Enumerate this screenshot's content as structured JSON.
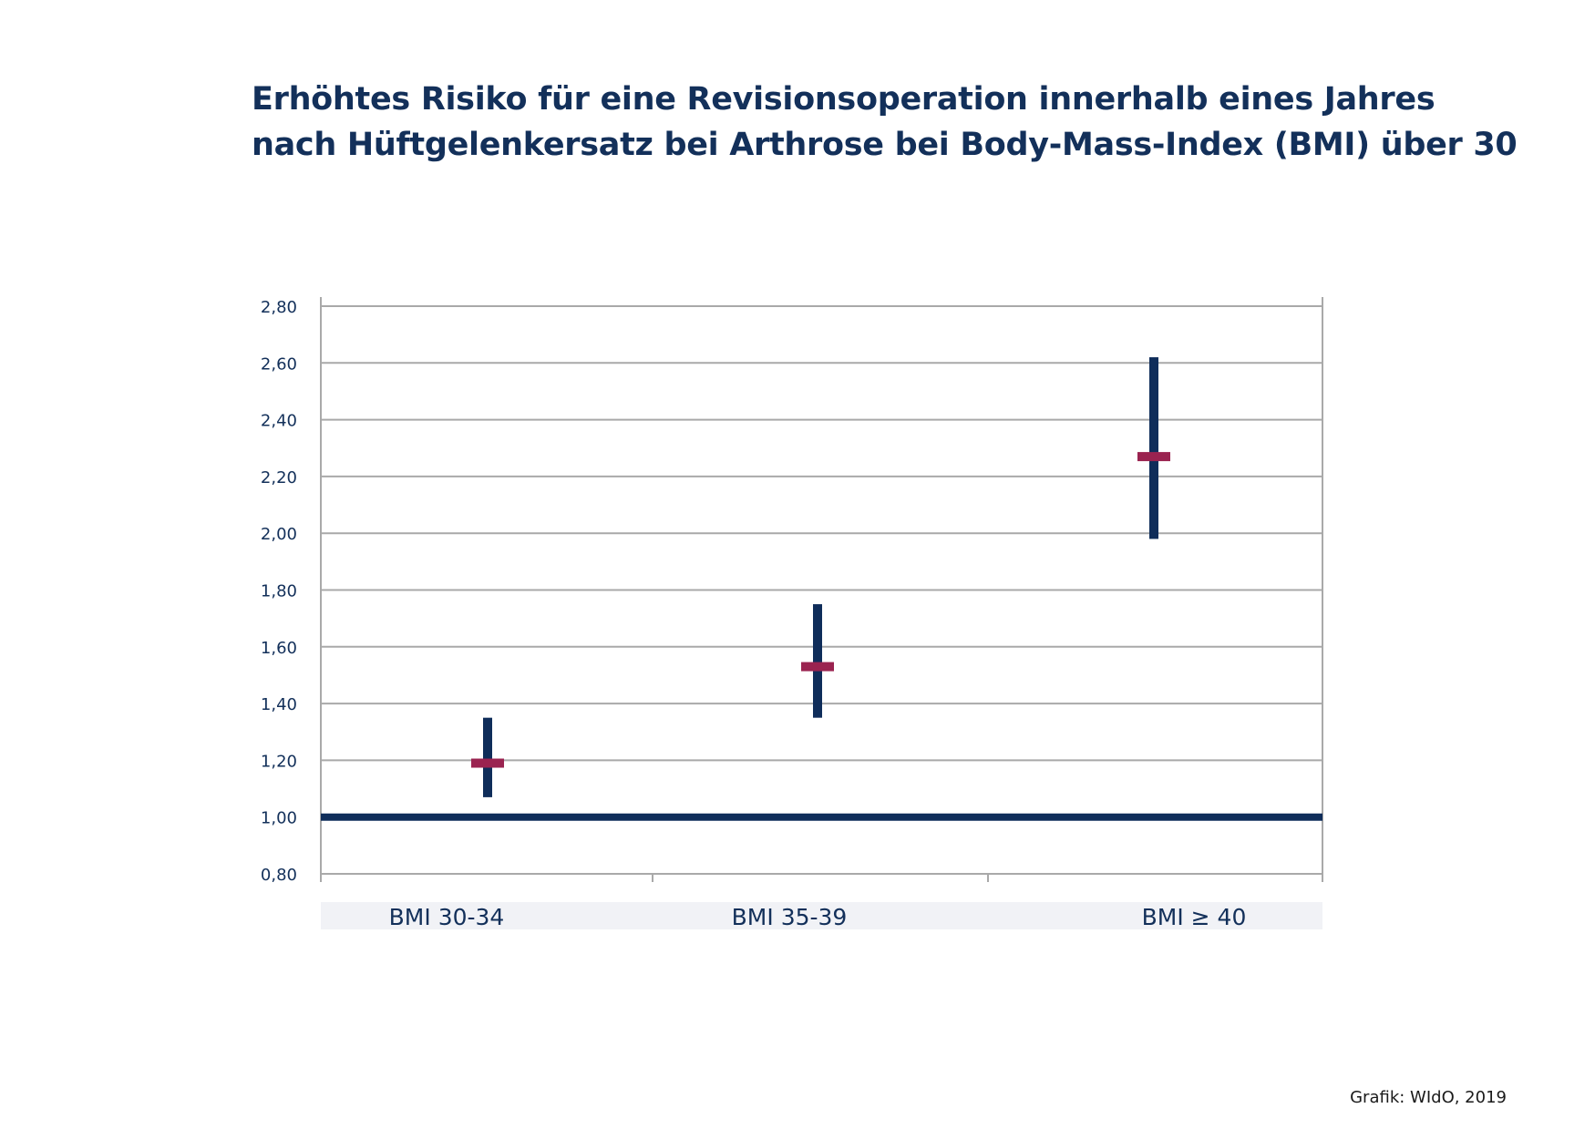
{
  "chart_data": {
    "type": "errorbar",
    "title_lines": [
      "Erhöhtes Risiko für eine Revisionsoperation innerhalb eines Jahres",
      "nach Hüftgelenkersatz bei Arthrose bei Body-Mass-Index (BMI) über 30"
    ],
    "categories": [
      "BMI 30-34",
      "BMI 35-39",
      "BMI ≥ 40"
    ],
    "estimates": [
      1.19,
      1.53,
      2.27
    ],
    "ci_lower": [
      1.07,
      1.35,
      1.98
    ],
    "ci_upper": [
      1.35,
      1.75,
      2.62
    ],
    "reference_line": 1.0,
    "ylim": [
      0.8,
      2.8
    ],
    "yticks": [
      "0,80",
      "1,00",
      "1,20",
      "1,40",
      "1,60",
      "1,80",
      "2,00",
      "2,20",
      "2,40",
      "2,60",
      "2,80"
    ],
    "grid": true,
    "colors": {
      "interval": "#0f2d5a",
      "estimate": "#9a2350",
      "reference": "#0f2d5a",
      "grid": "#a9a9a9",
      "text": "#13305a",
      "label_band": "#f1f2f6"
    }
  },
  "footer": {
    "credit": "Grafik: WIdO, 2019"
  }
}
